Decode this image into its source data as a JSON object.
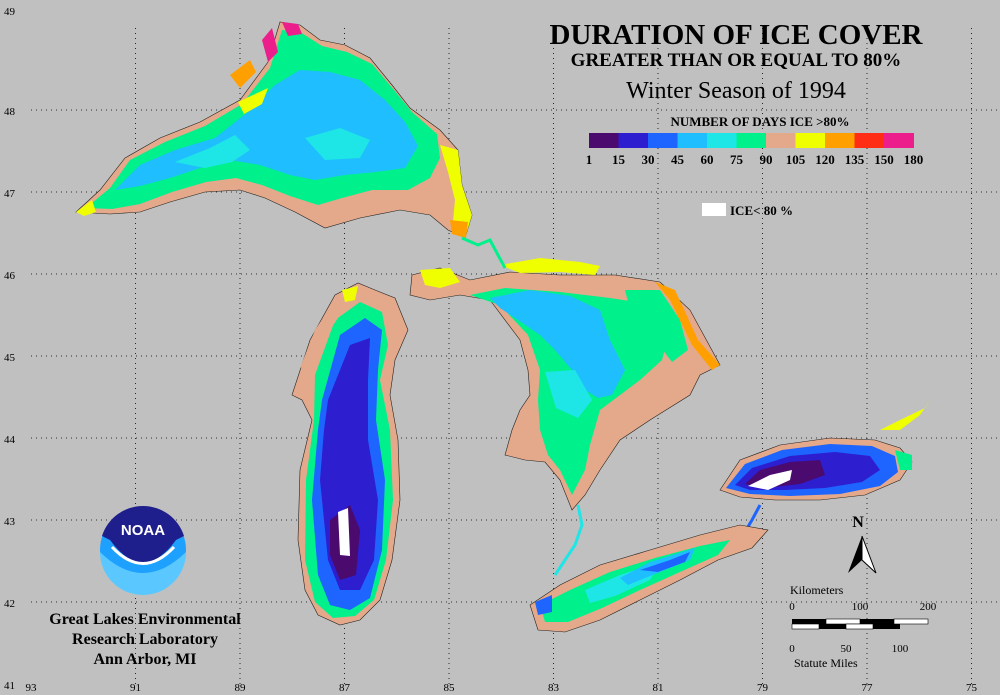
{
  "title": {
    "line1": "DURATION OF ICE COVER",
    "line2": "GREATER THAN OR EQUAL TO 80%",
    "line3": "Winter Season of 1994"
  },
  "legend": {
    "heading": "NUMBER OF DAYS ICE >80%",
    "labels": [
      "1",
      "15",
      "30",
      "45",
      "60",
      "75",
      "90",
      "105",
      "120",
      "135",
      "150",
      "180"
    ],
    "colors": [
      "#4a0a6e",
      "#2d1ed0",
      "#1e64ff",
      "#1ebeff",
      "#1ee6e6",
      "#00f08c",
      "#e3a98a",
      "#f0ff00",
      "#ffa000",
      "#ff2d14",
      "#eb1e8c"
    ],
    "below_label": "ICE< 80 %",
    "below_color": "#ffffff"
  },
  "axes": {
    "lat_labels": [
      "49",
      "48",
      "47",
      "46",
      "45",
      "44",
      "43",
      "42",
      "41"
    ],
    "lon_labels": [
      "93",
      "91",
      "89",
      "87",
      "85",
      "83",
      "81",
      "79",
      "77",
      "75"
    ]
  },
  "north_label": "N",
  "scale": {
    "km_title": "Kilometers",
    "km_ticks": [
      "0",
      "100",
      "200"
    ],
    "mi_ticks": [
      "0",
      "50",
      "100"
    ],
    "mi_title": "Statute Miles"
  },
  "logo": {
    "text": "NOAA"
  },
  "institution": {
    "line1": "Great Lakes Environmental",
    "line2": "Research Laboratory",
    "line3": "Ann Arbor, MI"
  }
}
